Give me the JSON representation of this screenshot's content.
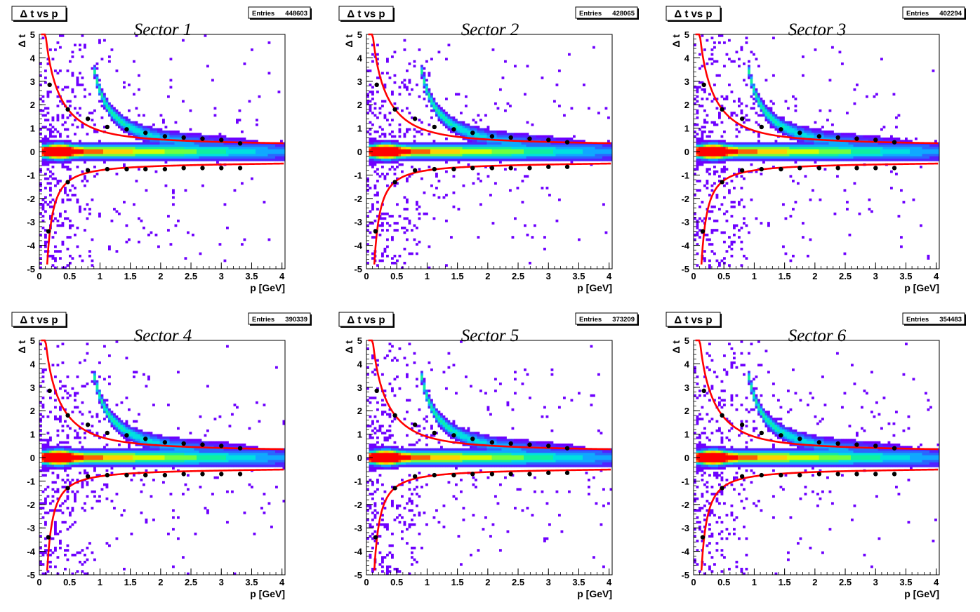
{
  "chart_data": [
    {
      "type": "heatmap",
      "histogram_title": "Δ t vs p",
      "title": "Sector 1",
      "entries_label": "Entries",
      "entries_value": "448603",
      "xlabel": "p [GeV]",
      "ylabel": "Δ t",
      "xlim": [
        0,
        4.05
      ],
      "ylim": [
        -5,
        5
      ],
      "xticks": [
        "0",
        "0.5",
        "1",
        "1.5",
        "2",
        "2.5",
        "3",
        "3.5",
        "4"
      ],
      "yticks": [
        "-5",
        "-4",
        "-3",
        "-2",
        "-1",
        "0",
        "1",
        "2",
        "3",
        "4",
        "5"
      ],
      "upper_points": {
        "x": [
          0.17,
          0.47,
          0.8,
          1.12,
          1.44,
          1.75,
          2.07,
          2.38,
          2.69,
          3.0,
          3.31
        ],
        "y": [
          2.85,
          1.8,
          1.4,
          1.05,
          0.95,
          0.8,
          0.65,
          0.6,
          0.55,
          0.5,
          0.35
        ]
      },
      "lower_points": {
        "x": [
          0.15,
          0.47,
          0.8,
          1.12,
          1.44,
          1.75,
          2.07,
          2.38,
          2.69,
          3.0,
          3.31
        ],
        "y": [
          -3.4,
          -1.3,
          -0.8,
          -0.75,
          -0.75,
          -0.75,
          -0.75,
          -0.7,
          -0.7,
          -0.7,
          -0.7
        ]
      }
    },
    {
      "type": "heatmap",
      "histogram_title": "Δ t vs p",
      "title": "Sector 2",
      "entries_label": "Entries",
      "entries_value": "428065",
      "xlabel": "p [GeV]",
      "ylabel": "Δ t",
      "xlim": [
        0,
        4.05
      ],
      "ylim": [
        -5,
        5
      ],
      "xticks": [
        "0",
        "0.5",
        "1",
        "1.5",
        "2",
        "2.5",
        "3",
        "3.5",
        "4"
      ],
      "yticks": [
        "-5",
        "-4",
        "-3",
        "-2",
        "-1",
        "0",
        "1",
        "2",
        "3",
        "4",
        "5"
      ],
      "upper_points": {
        "x": [
          0.17,
          0.47,
          0.8,
          1.12,
          1.44,
          1.75,
          2.07,
          2.38,
          2.69,
          3.0,
          3.31
        ],
        "y": [
          2.85,
          1.8,
          1.4,
          1.05,
          0.95,
          0.8,
          0.65,
          0.6,
          0.55,
          0.5,
          0.4
        ]
      },
      "lower_points": {
        "x": [
          0.15,
          0.47,
          0.8,
          1.12,
          1.44,
          1.75,
          2.07,
          2.38,
          2.69,
          3.0,
          3.31
        ],
        "y": [
          -3.4,
          -1.3,
          -0.8,
          -0.75,
          -0.75,
          -0.7,
          -0.7,
          -0.7,
          -0.7,
          -0.65,
          -0.65
        ]
      }
    },
    {
      "type": "heatmap",
      "histogram_title": "Δ t vs p",
      "title": "Sector 3",
      "entries_label": "Entries",
      "entries_value": "402294",
      "xlabel": "p [GeV]",
      "ylabel": "Δ t",
      "xlim": [
        0,
        4.05
      ],
      "ylim": [
        -5,
        5
      ],
      "xticks": [
        "0",
        "0.5",
        "1",
        "1.5",
        "2",
        "2.5",
        "3",
        "3.5",
        "4"
      ],
      "yticks": [
        "-5",
        "-4",
        "-3",
        "-2",
        "-1",
        "0",
        "1",
        "2",
        "3",
        "4",
        "5"
      ],
      "upper_points": {
        "x": [
          0.17,
          0.47,
          0.8,
          1.12,
          1.44,
          1.75,
          2.07,
          2.38,
          2.69,
          3.0,
          3.31
        ],
        "y": [
          2.85,
          1.8,
          1.4,
          1.05,
          0.95,
          0.8,
          0.65,
          0.6,
          0.55,
          0.5,
          0.4
        ]
      },
      "lower_points": {
        "x": [
          0.15,
          0.47,
          0.8,
          1.12,
          1.44,
          1.75,
          2.07,
          2.38,
          2.69,
          3.0,
          3.31
        ],
        "y": [
          -3.4,
          -1.3,
          -0.8,
          -0.75,
          -0.75,
          -0.7,
          -0.7,
          -0.7,
          -0.7,
          -0.7,
          -0.7
        ]
      }
    },
    {
      "type": "heatmap",
      "histogram_title": "Δ t vs p",
      "title": "Sector 4",
      "entries_label": "Entries",
      "entries_value": "390339",
      "xlabel": "p [GeV]",
      "ylabel": "Δ t",
      "xlim": [
        0,
        4.05
      ],
      "ylim": [
        -5,
        5
      ],
      "xticks": [
        "0",
        "0.5",
        "1",
        "1.5",
        "2",
        "2.5",
        "3",
        "3.5",
        "4"
      ],
      "yticks": [
        "-5",
        "-4",
        "-3",
        "-2",
        "-1",
        "0",
        "1",
        "2",
        "3",
        "4",
        "5"
      ],
      "upper_points": {
        "x": [
          0.17,
          0.47,
          0.8,
          1.12,
          1.44,
          1.75,
          2.07,
          2.38,
          2.69,
          3.0,
          3.31
        ],
        "y": [
          2.85,
          1.8,
          1.4,
          1.05,
          0.95,
          0.8,
          0.65,
          0.6,
          0.55,
          0.5,
          0.4
        ]
      },
      "lower_points": {
        "x": [
          0.15,
          0.47,
          0.8,
          1.12,
          1.44,
          1.75,
          2.07,
          2.38,
          2.69,
          3.0,
          3.31
        ],
        "y": [
          -3.4,
          -1.3,
          -0.8,
          -0.75,
          -0.75,
          -0.75,
          -0.75,
          -0.7,
          -0.7,
          -0.7,
          -0.7
        ]
      }
    },
    {
      "type": "heatmap",
      "histogram_title": "Δ t vs p",
      "title": "Sector 5",
      "entries_label": "Entries",
      "entries_value": "373209",
      "xlabel": "p [GeV]",
      "ylabel": "Δ t",
      "xlim": [
        0,
        4.05
      ],
      "ylim": [
        -5,
        5
      ],
      "xticks": [
        "0",
        "0.5",
        "1",
        "1.5",
        "2",
        "2.5",
        "3",
        "3.5",
        "4"
      ],
      "yticks": [
        "-5",
        "-4",
        "-3",
        "-2",
        "-1",
        "0",
        "1",
        "2",
        "3",
        "4",
        "5"
      ],
      "upper_points": {
        "x": [
          0.17,
          0.47,
          0.8,
          1.12,
          1.44,
          1.75,
          2.07,
          2.38,
          2.69,
          3.0,
          3.31
        ],
        "y": [
          2.85,
          1.8,
          1.4,
          1.05,
          0.95,
          0.8,
          0.65,
          0.6,
          0.55,
          0.5,
          0.4
        ]
      },
      "lower_points": {
        "x": [
          0.15,
          0.47,
          0.8,
          1.12,
          1.44,
          1.75,
          2.07,
          2.38,
          2.69,
          3.0,
          3.31
        ],
        "y": [
          -3.4,
          -1.3,
          -0.8,
          -0.75,
          -0.75,
          -0.7,
          -0.7,
          -0.7,
          -0.7,
          -0.65,
          -0.65
        ]
      }
    },
    {
      "type": "heatmap",
      "histogram_title": "Δ t vs p",
      "title": "Sector 6",
      "entries_label": "Entries",
      "entries_value": "354483",
      "xlabel": "p [GeV]",
      "ylabel": "Δ t",
      "xlim": [
        0,
        4.05
      ],
      "ylim": [
        -5,
        5
      ],
      "xticks": [
        "0",
        "0.5",
        "1",
        "1.5",
        "2",
        "2.5",
        "3",
        "3.5",
        "4"
      ],
      "yticks": [
        "-5",
        "-4",
        "-3",
        "-2",
        "-1",
        "0",
        "1",
        "2",
        "3",
        "4",
        "5"
      ],
      "upper_points": {
        "x": [
          0.17,
          0.47,
          0.8,
          1.12,
          1.44,
          1.75,
          2.07,
          2.38,
          2.69,
          3.0,
          3.31
        ],
        "y": [
          2.85,
          1.8,
          1.4,
          1.05,
          0.95,
          0.8,
          0.65,
          0.6,
          0.55,
          0.5,
          0.4
        ]
      },
      "lower_points": {
        "x": [
          0.15,
          0.47,
          0.8,
          1.12,
          1.44,
          1.75,
          2.07,
          2.38,
          2.69,
          3.0,
          3.31
        ],
        "y": [
          -3.4,
          -1.3,
          -0.8,
          -0.75,
          -0.75,
          -0.75,
          -0.7,
          -0.7,
          -0.7,
          -0.7,
          -0.7
        ]
      }
    }
  ],
  "colors": {
    "fit_curve": "#ff0000",
    "points": "#000000",
    "palette": [
      "#6e00ff",
      "#5222ff",
      "#2a66ff",
      "#10a8ff",
      "#00e0e0",
      "#10f0a0",
      "#70ff40",
      "#d0ff00",
      "#ffd000",
      "#ff6000",
      "#ff0000"
    ]
  }
}
